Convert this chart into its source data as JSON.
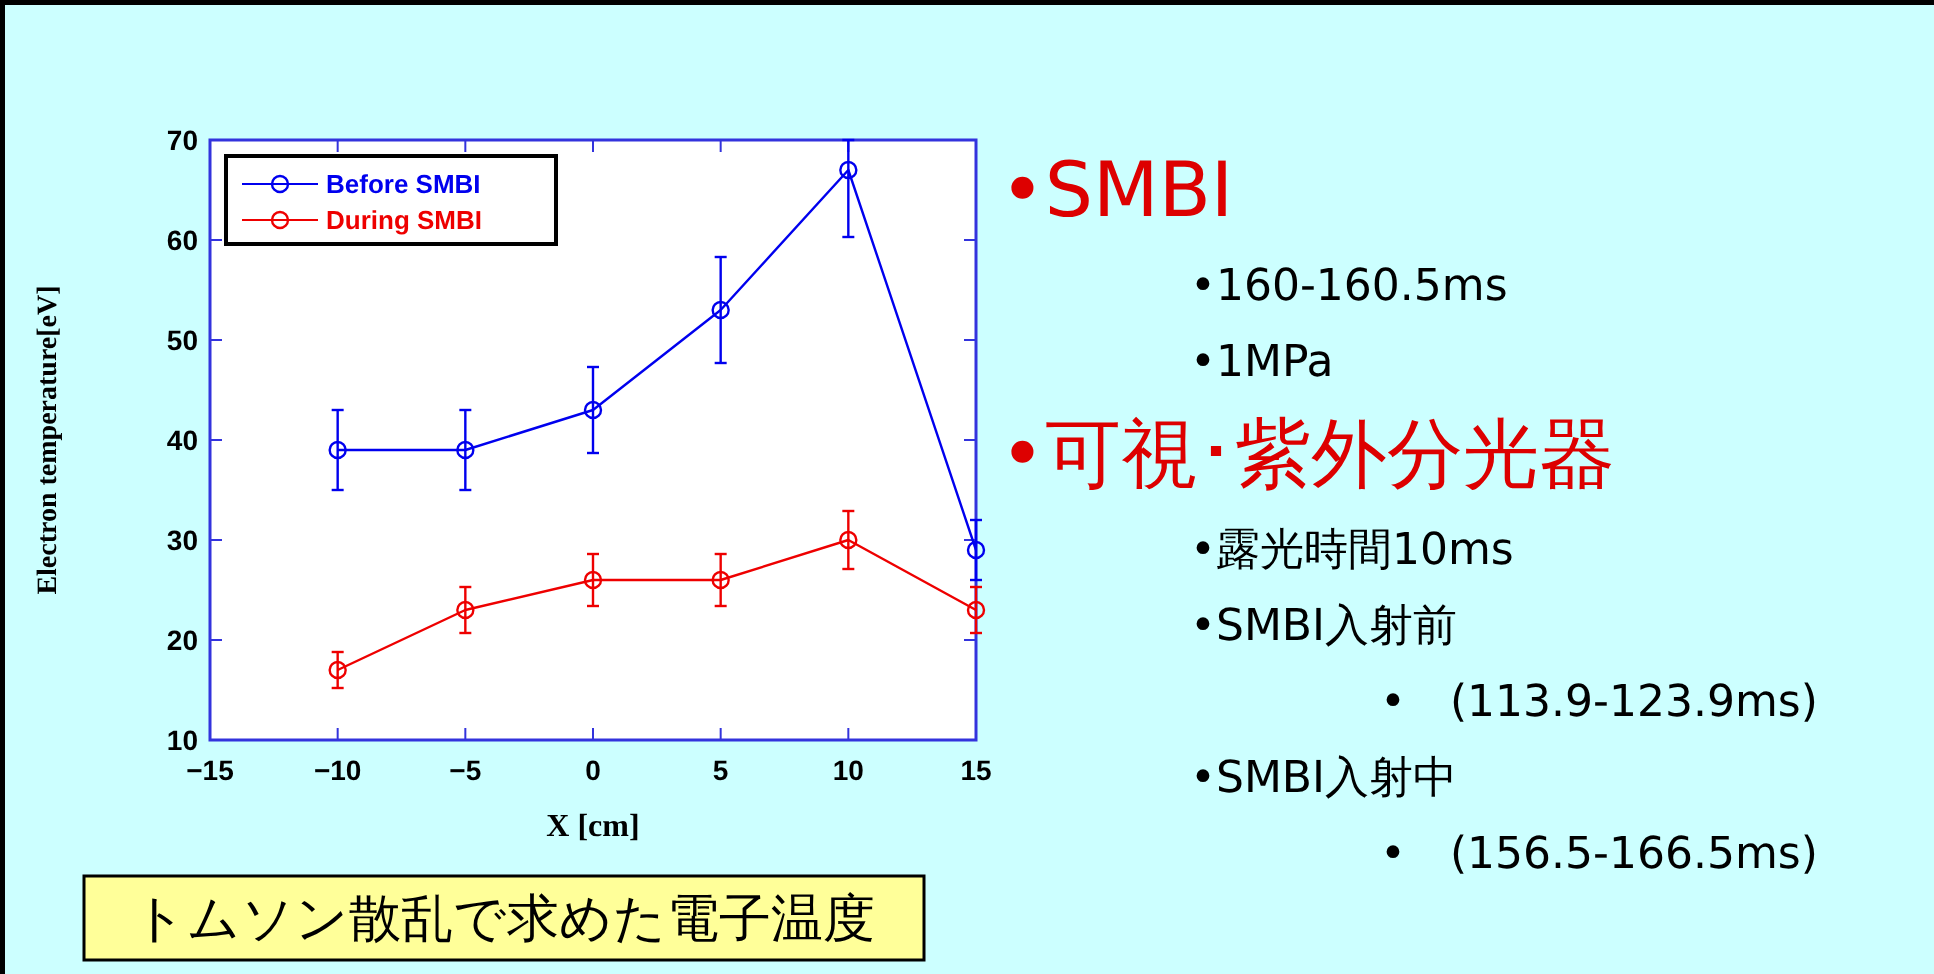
{
  "chart_data": {
    "type": "line",
    "xlabel": "X [cm]",
    "ylabel": "Electron temperature[eV]",
    "x": [
      -10,
      -5,
      0,
      5,
      10,
      15
    ],
    "series": [
      {
        "name": "Before SMBI",
        "color": "#0000ee",
        "values": [
          39,
          39,
          43,
          53,
          67,
          29
        ],
        "errors": [
          4,
          4,
          4.3,
          5.3,
          [
            60.3,
            70
          ],
          3
        ]
      },
      {
        "name": "During SMBI",
        "color": "#ee0000",
        "values": [
          17,
          23,
          26,
          26,
          30,
          23
        ],
        "errors": [
          1.8,
          2.3,
          2.6,
          2.6,
          2.9,
          2.3
        ]
      }
    ],
    "xlim": [
      -15,
      15
    ],
    "xticks": [
      {
        "value": -15,
        "label": "−15"
      },
      {
        "value": -10,
        "label": "−10"
      },
      {
        "value": -5,
        "label": "−5"
      },
      0,
      5,
      10,
      15
    ],
    "ylim": [
      10,
      70
    ],
    "yticks": [
      10,
      20,
      30,
      40,
      50,
      60,
      70
    ],
    "grid": false,
    "legend": "top left",
    "marker": "circle",
    "line_style": "solid",
    "annotations": [
      "•SMBI",
      "•160-160.5ms",
      "•1MPa",
      "•可視･紫外分光器",
      "•露光時間10ms",
      "•SMBI入射前",
      "•　(113.9-123.9ms)",
      "•SMBI入射中",
      "•　(156.5-166.5ms)",
      "トムソン散乱で求めた電子温度"
    ]
  }
}
